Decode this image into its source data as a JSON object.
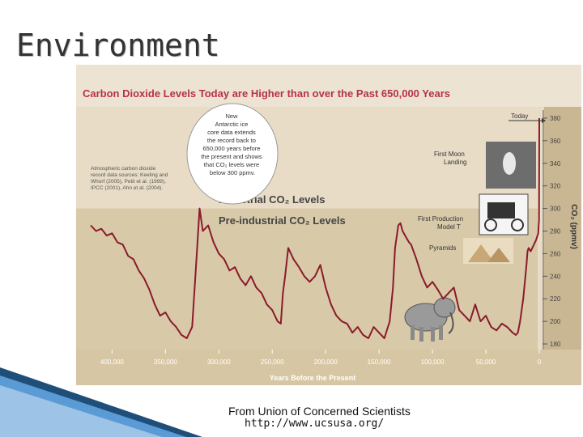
{
  "slide": {
    "title": "Environment",
    "credit_line1": "From Union of Concerned Scientists",
    "credit_line2": "http://www.ucsusa.org/"
  },
  "colors": {
    "background_band": "#e8dcc6",
    "preindustrial_band": "#d8c9a9",
    "line": "#8b1a2b",
    "title_text": "#b8324a",
    "axis_text": "#ffffff"
  },
  "chart_data": {
    "type": "line",
    "title": "Carbon Dioxide Levels Today are Higher than over the Past 650,000 Years",
    "xlabel": "Years Before the Present",
    "ylabel": "CO₂ (ppmv)",
    "x_ticks": [
      "400,000",
      "350,000",
      "300,000",
      "250,000",
      "200,000",
      "150,000",
      "100,000",
      "50,000",
      "0"
    ],
    "x_tick_values": [
      400000,
      350000,
      300000,
      250000,
      200000,
      150000,
      100000,
      50000,
      0
    ],
    "y_ticks": [
      "180",
      "200",
      "220",
      "240",
      "260",
      "280",
      "300",
      "320",
      "340",
      "360",
      "380"
    ],
    "y_tick_values": [
      180,
      200,
      220,
      240,
      260,
      280,
      300,
      320,
      340,
      360,
      380
    ],
    "xlim": [
      420000,
      0
    ],
    "ylim": [
      175,
      390
    ],
    "bands": [
      {
        "label": "Industrial CO₂ Levels",
        "from": 300,
        "to": 390
      },
      {
        "label": "Pre-industrial CO₂ Levels",
        "from": 175,
        "to": 300
      }
    ],
    "annotations": {
      "bubble": "New Antarctic ice core data extends the record back to 650,000 years before the present and shows that CO₂ levels were below 300 ppmv.",
      "sources": "Atmospheric carbon dioxide record data sources: Keeling and Whorf (2005), Petit et al. (1999), IPCC (2001), Ahn et al. (2004).",
      "today": "Today",
      "moon": "First Moon Landing",
      "model_t": "First Production Model T",
      "pyramids": "Pyramids"
    },
    "series": [
      {
        "x": [
          420000,
          415000,
          410000,
          405000,
          400000,
          395000,
          390000,
          385000,
          380000,
          375000,
          370000,
          365000,
          360000,
          355000,
          350000,
          345000,
          340000,
          335000,
          330000,
          325000,
          322000,
          318000,
          315000,
          310000,
          305000,
          300000,
          295000,
          290000,
          285000,
          280000,
          275000,
          270000,
          265000,
          260000,
          255000,
          250000,
          245000,
          242000,
          240000,
          238000,
          235000,
          230000,
          225000,
          220000,
          215000,
          210000,
          205000,
          200000,
          195000,
          190000,
          185000,
          180000,
          175000,
          170000,
          165000,
          160000,
          155000,
          150000,
          145000,
          140000,
          137000,
          135000,
          132000,
          130000,
          128000,
          125000,
          122000,
          120000,
          115000,
          110000,
          105000,
          100000,
          95000,
          90000,
          85000,
          80000,
          75000,
          70000,
          65000,
          60000,
          55000,
          50000,
          45000,
          40000,
          35000,
          30000,
          25000,
          22000,
          20000,
          18000,
          15000,
          12000,
          11000,
          10000,
          8000,
          5000,
          3000,
          1000,
          200,
          0
        ],
        "y": [
          285,
          280,
          282,
          276,
          278,
          270,
          268,
          258,
          255,
          245,
          238,
          228,
          215,
          205,
          208,
          200,
          195,
          188,
          185,
          195,
          240,
          300,
          280,
          285,
          270,
          260,
          255,
          245,
          248,
          238,
          232,
          240,
          230,
          225,
          215,
          210,
          200,
          198,
          225,
          240,
          265,
          255,
          248,
          240,
          235,
          240,
          250,
          230,
          215,
          205,
          200,
          198,
          190,
          195,
          188,
          185,
          195,
          190,
          185,
          200,
          230,
          265,
          285,
          287,
          280,
          275,
          270,
          268,
          255,
          240,
          230,
          235,
          228,
          220,
          225,
          230,
          210,
          205,
          200,
          215,
          200,
          205,
          195,
          192,
          198,
          195,
          190,
          188,
          190,
          200,
          220,
          250,
          262,
          265,
          262,
          268,
          272,
          278,
          290,
          380
        ]
      }
    ]
  }
}
